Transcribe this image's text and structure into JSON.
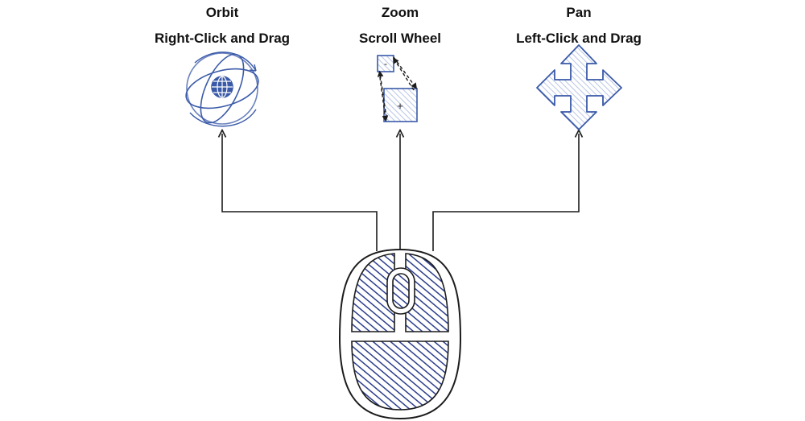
{
  "controls": [
    {
      "id": "orbit",
      "title": "Orbit",
      "action": "Right-Click and Drag",
      "icon": "orbit-globe-icon"
    },
    {
      "id": "zoom",
      "title": "Zoom",
      "action": "Scroll Wheel",
      "icon": "zoom-squares-icon",
      "minus": "-",
      "plus": "+"
    },
    {
      "id": "pan",
      "title": "Pan",
      "action": "Left-Click and Drag",
      "icon": "four-way-arrow-icon"
    }
  ],
  "colors": {
    "ink": "#1c1c1c",
    "mouse_fill": "#2c3e8c",
    "icon_stroke": "#3a5aa8",
    "icon_fill": "#c9d4ee"
  }
}
